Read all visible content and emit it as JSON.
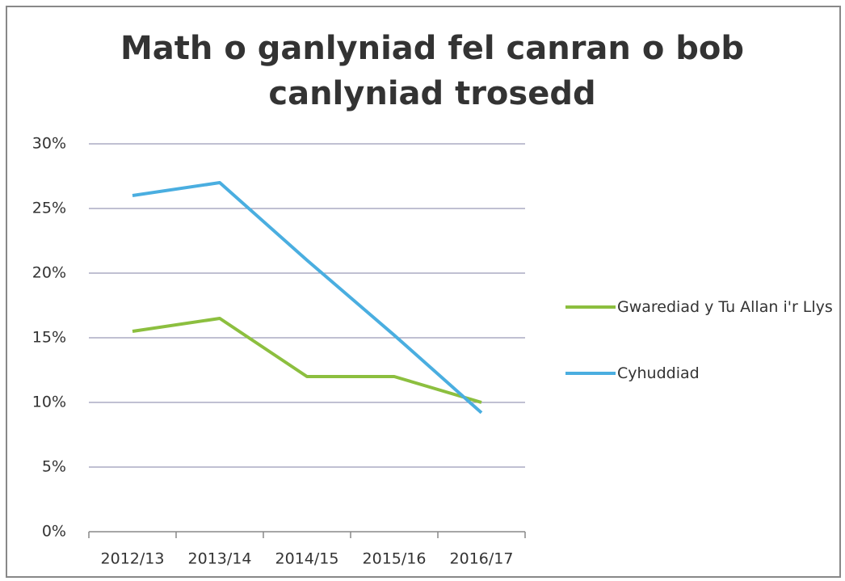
{
  "chart_data": {
    "type": "line",
    "title": "Math o ganlyniad fel canran o bob canlyniad trosedd",
    "categories": [
      "2012/13",
      "2013/14",
      "2014/15",
      "2015/16",
      "2016/17"
    ],
    "series": [
      {
        "name": "Gwarediad y Tu Allan i'r Llys",
        "color": "#8cbf3f",
        "values": [
          15.5,
          16.5,
          12,
          12,
          10
        ]
      },
      {
        "name": "Cyhuddiad",
        "color": "#4aaee0",
        "values": [
          26,
          27,
          21,
          15.2,
          9.2
        ]
      }
    ],
    "ylim": [
      0,
      30
    ],
    "yticks": [
      {
        "value": 0,
        "label": "0%"
      },
      {
        "value": 5,
        "label": "5%"
      },
      {
        "value": 10,
        "label": "10%"
      },
      {
        "value": 15,
        "label": "15%"
      },
      {
        "value": 20,
        "label": "20%"
      },
      {
        "value": 25,
        "label": "25%"
      },
      {
        "value": 30,
        "label": "30%"
      }
    ],
    "grid": true,
    "legend": "right"
  }
}
